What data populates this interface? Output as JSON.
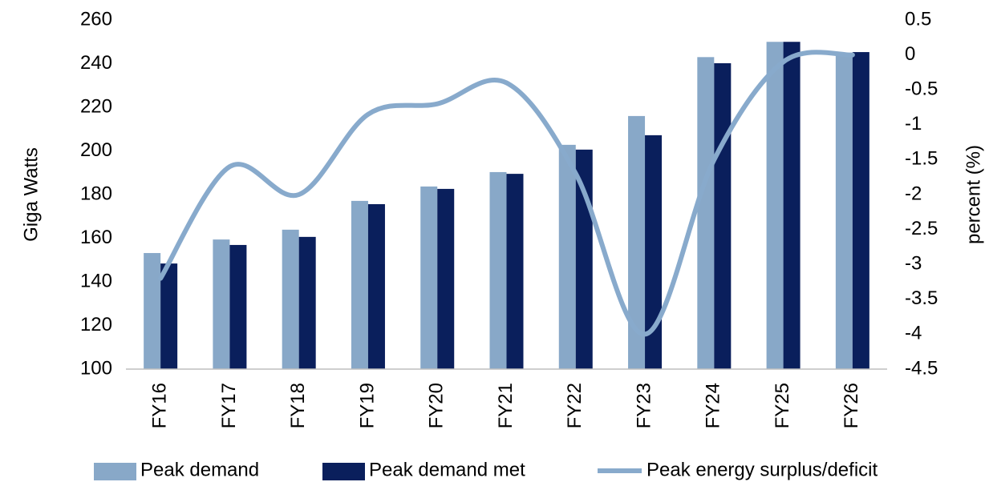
{
  "chart_data": {
    "type": "bar_line",
    "y_label": "Giga Watts",
    "y2_label": "percent (%)",
    "categories": [
      "FY16",
      "FY17",
      "FY18",
      "FY19",
      "FY20",
      "FY21",
      "FY22",
      "FY23",
      "FY24",
      "FY25",
      "FY26"
    ],
    "series": [
      {
        "name": "Peak demand",
        "type": "bar",
        "color": "#88a8c8",
        "values": [
          153.2,
          159.4,
          163.9,
          177.1,
          183.7,
          190.3,
          202.8,
          216,
          243,
          250,
          245
        ]
      },
      {
        "name": "Peak demand met",
        "type": "bar",
        "color": "#0a1f5c",
        "values": [
          148.4,
          156.9,
          160.6,
          175.6,
          182.6,
          189.5,
          200.6,
          207.2,
          240.2,
          250,
          245.3
        ]
      },
      {
        "name": "Peak energy surplus/deficit",
        "type": "line",
        "axis": "y2",
        "color": "#88aacc",
        "values": [
          -3.2,
          -1.6,
          -2.0,
          -0.85,
          -0.7,
          -0.4,
          -1.7,
          -4.0,
          -1.5,
          -0.1,
          0.0
        ]
      }
    ],
    "ylim": [
      100,
      260
    ],
    "yticks": [
      100,
      120,
      140,
      160,
      180,
      200,
      220,
      240,
      260
    ],
    "y2lim": [
      -4.5,
      0.5
    ],
    "y2ticks": [
      -4.5,
      -4,
      -3.5,
      -3,
      -2.5,
      -2,
      -1.5,
      -1,
      -0.5,
      0,
      0.5
    ],
    "legend": "bottom"
  }
}
